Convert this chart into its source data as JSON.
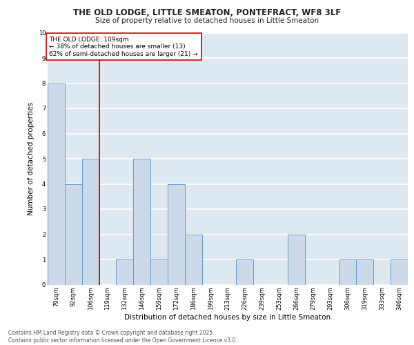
{
  "title1": "THE OLD LODGE, LITTLE SMEATON, PONTEFRACT, WF8 3LF",
  "title2": "Size of property relative to detached houses in Little Smeaton",
  "xlabel": "Distribution of detached houses by size in Little Smeaton",
  "ylabel": "Number of detached properties",
  "bins": [
    "79sqm",
    "92sqm",
    "106sqm",
    "119sqm",
    "132sqm",
    "146sqm",
    "159sqm",
    "172sqm",
    "186sqm",
    "199sqm",
    "213sqm",
    "226sqm",
    "239sqm",
    "253sqm",
    "266sqm",
    "279sqm",
    "293sqm",
    "306sqm",
    "319sqm",
    "333sqm",
    "346sqm"
  ],
  "values": [
    8,
    4,
    5,
    0,
    1,
    5,
    1,
    4,
    2,
    0,
    0,
    1,
    0,
    0,
    2,
    0,
    0,
    1,
    1,
    0,
    1
  ],
  "bar_color": "#ccd9e8",
  "bar_edge_color": "#6699cc",
  "red_line_index": 2,
  "red_line_color": "#cc0000",
  "annotation_box_color": "#cc0000",
  "annotation_text": "THE OLD LODGE: 109sqm\n← 38% of detached houses are smaller (13)\n62% of semi-detached houses are larger (21) →",
  "annotation_fontsize": 6.5,
  "ylim": [
    0,
    10
  ],
  "yticks": [
    0,
    1,
    2,
    3,
    4,
    5,
    6,
    7,
    8,
    9,
    10
  ],
  "background_color": "#dde8f0",
  "grid_color": "#ffffff",
  "footer": "Contains HM Land Registry data © Crown copyright and database right 2025.\nContains public sector information licensed under the Open Government Licence v3.0.",
  "title_fontsize": 8.5,
  "subtitle_fontsize": 7.5,
  "xlabel_fontsize": 7.5,
  "ylabel_fontsize": 7.5,
  "tick_fontsize": 6.0
}
